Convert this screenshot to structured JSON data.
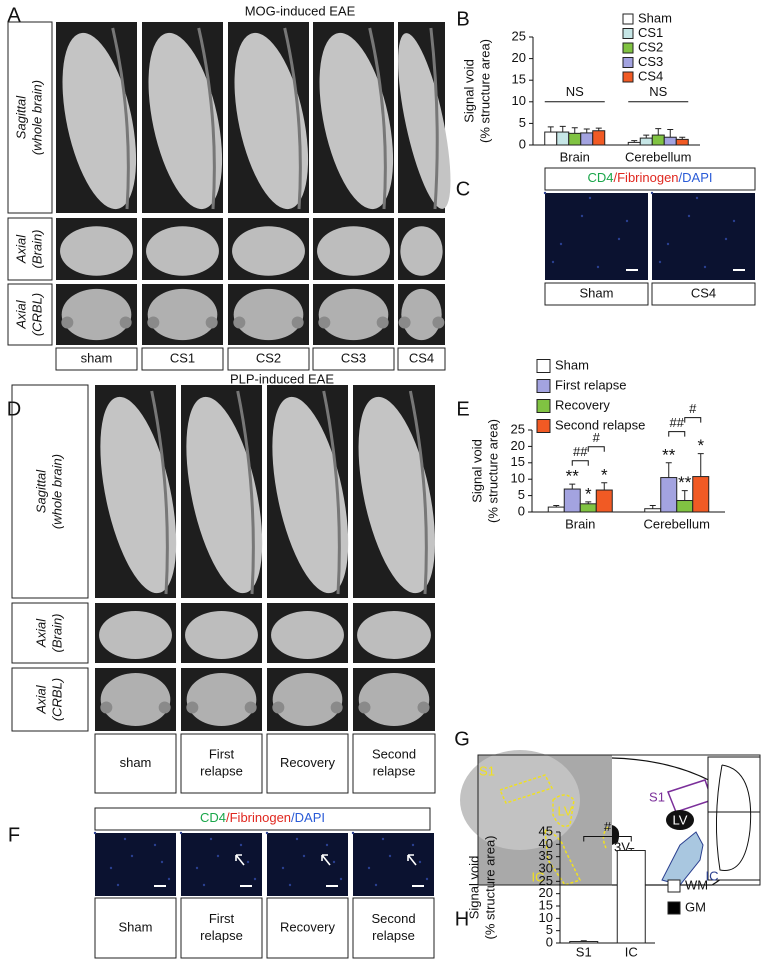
{
  "panels": {
    "A": {
      "letter": "A",
      "title": "MOG-induced EAE",
      "rows": [
        [
          "Sagittal",
          "(whole brain)"
        ],
        [
          "Axial",
          "(Brain)"
        ],
        [
          "Axial",
          "(CRBL)"
        ]
      ],
      "columns": [
        [
          "sham"
        ],
        [
          "CS1"
        ],
        [
          "CS2"
        ],
        [
          "CS3"
        ],
        [
          "CS4"
        ]
      ]
    },
    "C": {
      "letter": "C",
      "stain": [
        "CD4",
        "/Fibrinogen",
        "/DAPI"
      ],
      "columns": [
        [
          "Sham"
        ],
        [
          "CS4"
        ]
      ]
    },
    "D": {
      "letter": "D",
      "title": "PLP-induced EAE",
      "rows": [
        [
          "Sagittal",
          "(whole brain)"
        ],
        [
          "Axial",
          "(Brain)"
        ],
        [
          "Axial",
          "(CRBL)"
        ]
      ],
      "columns": [
        [
          "sham"
        ],
        [
          "First",
          "relapse"
        ],
        [
          "Recovery"
        ],
        [
          "Second",
          "relapse"
        ]
      ]
    },
    "F": {
      "letter": "F",
      "stain": [
        "CD4",
        "/Fibrinogen",
        "/DAPI"
      ],
      "columns": [
        [
          "Sham"
        ],
        [
          "First",
          "relapse"
        ],
        [
          "Recovery"
        ],
        [
          "Second",
          "relapse"
        ]
      ]
    },
    "G": {
      "letter": "G",
      "image_labels": [
        "S1",
        "LV",
        "IC"
      ],
      "schematic_labels": [
        "S1",
        "LV",
        "3V",
        "IC"
      ]
    }
  },
  "chart_data": [
    {
      "panel": "B",
      "type": "bar",
      "y_label": [
        "Signal void",
        "(% structure area)"
      ],
      "categories": [
        "Brain",
        "Cerebellum"
      ],
      "ylim": [
        0,
        25
      ],
      "yticks": [
        0,
        5,
        10,
        15,
        20,
        25
      ],
      "series": [
        {
          "name": "Sham",
          "color": "#ffffff",
          "values": [
            3,
            0.6
          ],
          "errors": [
            1.2,
            0.4
          ]
        },
        {
          "name": "CS1",
          "color": "#c6e6e6",
          "values": [
            3,
            1.6
          ],
          "errors": [
            1.3,
            0.7
          ]
        },
        {
          "name": "CS2",
          "color": "#80c342",
          "values": [
            2.7,
            2.3
          ],
          "errors": [
            1.3,
            1.5
          ]
        },
        {
          "name": "CS3",
          "color": "#a3a3e0",
          "values": [
            2.8,
            1.8
          ],
          "errors": [
            0.9,
            1.8
          ]
        },
        {
          "name": "CS4",
          "color": "#f15a24",
          "values": [
            3.3,
            1.3
          ],
          "errors": [
            0.6,
            0.5
          ]
        }
      ],
      "group_labels": [
        "NS",
        "NS"
      ]
    },
    {
      "panel": "E",
      "type": "bar",
      "y_label": [
        "Signal void",
        "(% structure area)"
      ],
      "categories": [
        "Brain",
        "Cerebellum"
      ],
      "ylim": [
        0,
        25
      ],
      "yticks": [
        0,
        5,
        10,
        15,
        20,
        25
      ],
      "series": [
        {
          "name": "Sham",
          "color": "#ffffff",
          "values": [
            1.5,
            1.0
          ],
          "errors": [
            0.5,
            1.0
          ]
        },
        {
          "name": "First relapse",
          "color": "#a3a3e0",
          "values": [
            7,
            10.5
          ],
          "errors": [
            1.5,
            4.5
          ],
          "significance": [
            "**",
            "**"
          ]
        },
        {
          "name": "Recovery",
          "color": "#80c342",
          "values": [
            2.5,
            3.5
          ],
          "errors": [
            0.6,
            3
          ],
          "significance": [
            "*",
            "**"
          ]
        },
        {
          "name": "Second relapse",
          "color": "#f15a24",
          "values": [
            6.7,
            10.8
          ],
          "errors": [
            2.2,
            7
          ],
          "significance": [
            "*",
            "*"
          ]
        }
      ],
      "brackets": [
        [
          "##",
          "#"
        ],
        [
          "##",
          "#"
        ]
      ]
    },
    {
      "panel": "H",
      "type": "bar",
      "y_label": [
        "Signal void",
        "(% structure area)"
      ],
      "categories": [
        "S1",
        "IC"
      ],
      "values": [
        0.6,
        37.5
      ],
      "errors": [
        0.3,
        0.8
      ],
      "color": "#ffffff",
      "legend": [
        {
          "name": "WM",
          "color": "#ffffff"
        },
        {
          "name": "GM",
          "color": "#000000"
        }
      ],
      "ylim": [
        0,
        45
      ],
      "yticks": [
        0,
        5,
        10,
        15,
        20,
        25,
        30,
        35,
        40,
        45
      ],
      "brackets": [
        "#"
      ]
    }
  ]
}
